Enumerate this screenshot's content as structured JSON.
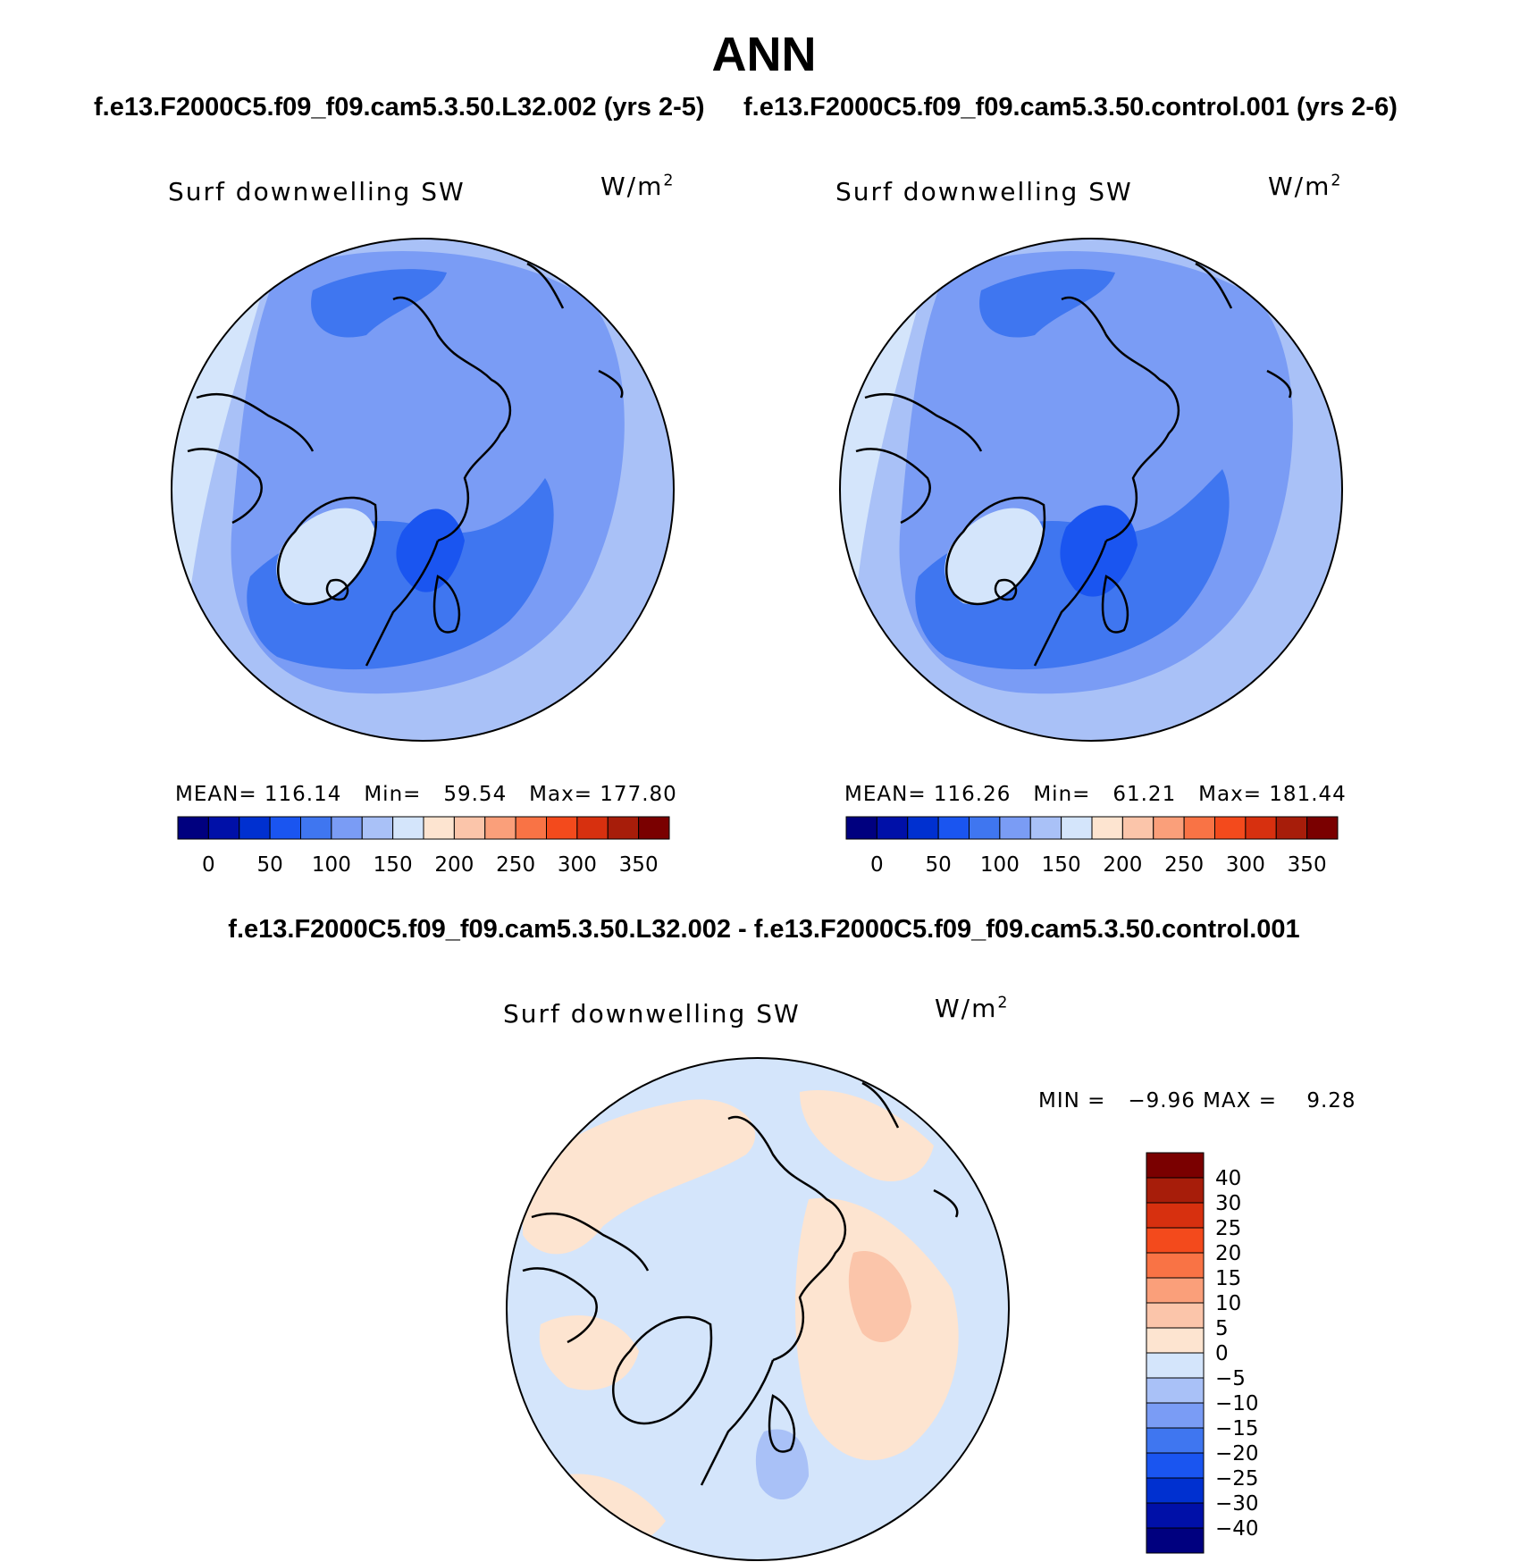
{
  "title": "ANN",
  "panels": [
    {
      "case": "f.e13.F2000C5.f09_f09.cam5.3.50.L32.002 (yrs 2-5)",
      "variable": "Surf downwelling SW",
      "units": "W/m",
      "units_sup": "2",
      "stats": {
        "mean_label": "MEAN=",
        "mean": "116.14",
        "min_label": "Min=",
        "min": "59.54",
        "max_label": "Max=",
        "max": "177.80"
      }
    },
    {
      "case": "f.e13.F2000C5.f09_f09.cam5.3.50.control.001 (yrs 2-6)",
      "variable": "Surf downwelling SW",
      "units": "W/m",
      "units_sup": "2",
      "stats": {
        "mean_label": "MEAN=",
        "mean": "116.26",
        "min_label": "Min=",
        "min": "61.21",
        "max_label": "Max=",
        "max": "181.44"
      }
    }
  ],
  "horizontal_colorbar": {
    "colors": [
      "#00007f",
      "#0010a8",
      "#0030d0",
      "#1a55f0",
      "#3f76f0",
      "#7a9cf5",
      "#a9c1f7",
      "#d4e5fb",
      "#fde4d0",
      "#fbc5aa",
      "#fa9f7a",
      "#f97345",
      "#f34a1c",
      "#d7300f",
      "#a71d0a",
      "#7a0000"
    ],
    "labels": [
      "0",
      "50",
      "100",
      "150",
      "200",
      "250",
      "300",
      "350"
    ]
  },
  "difference": {
    "title": "f.e13.F2000C5.f09_f09.cam5.3.50.L32.002 - f.e13.F2000C5.f09_f09.cam5.3.50.control.001",
    "variable": "Surf downwelling SW",
    "units": "W/m",
    "units_sup": "2",
    "stats": {
      "min_label": "MIN =",
      "min": "−9.96",
      "max_label": "MAX =",
      "max": "9.28"
    },
    "colorbar": {
      "colors": [
        "#7a0000",
        "#a71d0a",
        "#d7300f",
        "#f34a1c",
        "#f97345",
        "#fa9f7a",
        "#fbc5aa",
        "#fde4d0",
        "#d4e5fb",
        "#a9c1f7",
        "#7a9cf5",
        "#3f76f0",
        "#1a55f0",
        "#0030d0",
        "#0010a8",
        "#00007f"
      ],
      "labels": [
        "40",
        "30",
        "25",
        "20",
        "15",
        "10",
        "5",
        "0",
        "−5",
        "−10",
        "−15",
        "−20",
        "−25",
        "−30",
        "−40"
      ]
    }
  },
  "map_colors": {
    "sw_light": "#d4e5fb",
    "sw_mid1": "#a9c1f7",
    "sw_mid2": "#7a9cf5",
    "sw_mid3": "#3f76f0",
    "sw_dark": "#1a55f0",
    "diff_neg": "#d4e5fb",
    "diff_pos": "#fde4d0",
    "diff_pos2": "#fbc5aa",
    "diff_neg2": "#a9c1f7"
  }
}
